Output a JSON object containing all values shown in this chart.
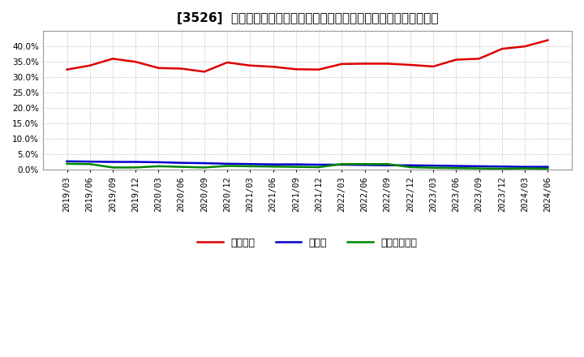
{
  "title": "[3526]  自己資本、のれん、繰延税金資産の総資産に対する比率の推移",
  "x_labels": [
    "2019/03",
    "2019/06",
    "2019/09",
    "2019/12",
    "2020/03",
    "2020/06",
    "2020/09",
    "2020/12",
    "2021/03",
    "2021/06",
    "2021/09",
    "2021/12",
    "2022/03",
    "2022/06",
    "2022/09",
    "2022/12",
    "2023/03",
    "2023/06",
    "2023/09",
    "2023/12",
    "2024/03",
    "2024/06"
  ],
  "jikoshihon": [
    0.325,
    0.338,
    0.36,
    0.35,
    0.33,
    0.328,
    0.318,
    0.348,
    0.338,
    0.334,
    0.326,
    0.325,
    0.343,
    0.344,
    0.344,
    0.34,
    0.335,
    0.357,
    0.36,
    0.392,
    0.4,
    0.42
  ],
  "noren": [
    0.028,
    0.027,
    0.026,
    0.026,
    0.025,
    0.023,
    0.022,
    0.02,
    0.019,
    0.018,
    0.018,
    0.017,
    0.017,
    0.016,
    0.015,
    0.015,
    0.014,
    0.013,
    0.012,
    0.011,
    0.01,
    0.01
  ],
  "kurinobezeikin": [
    0.02,
    0.019,
    0.008,
    0.008,
    0.012,
    0.01,
    0.008,
    0.013,
    0.012,
    0.011,
    0.01,
    0.009,
    0.019,
    0.019,
    0.019,
    0.009,
    0.007,
    0.006,
    0.005,
    0.004,
    0.005,
    0.004
  ],
  "jikoshihon_color": "#dd0000",
  "noren_color": "#0000cc",
  "kurinobezeikin_color": "#008800",
  "legend_labels": [
    "自己資本",
    "のれん",
    "繰延税金資産"
  ],
  "ylim": [
    0.0,
    0.45
  ],
  "yticks": [
    0.0,
    0.05,
    0.1,
    0.15,
    0.2,
    0.25,
    0.3,
    0.35,
    0.4
  ],
  "bg_color": "#ffffff",
  "plot_bg_color": "#ffffff",
  "grid_color": "#aaaaaa",
  "title_fontsize": 11,
  "tick_fontsize": 7.5,
  "legend_fontsize": 9
}
